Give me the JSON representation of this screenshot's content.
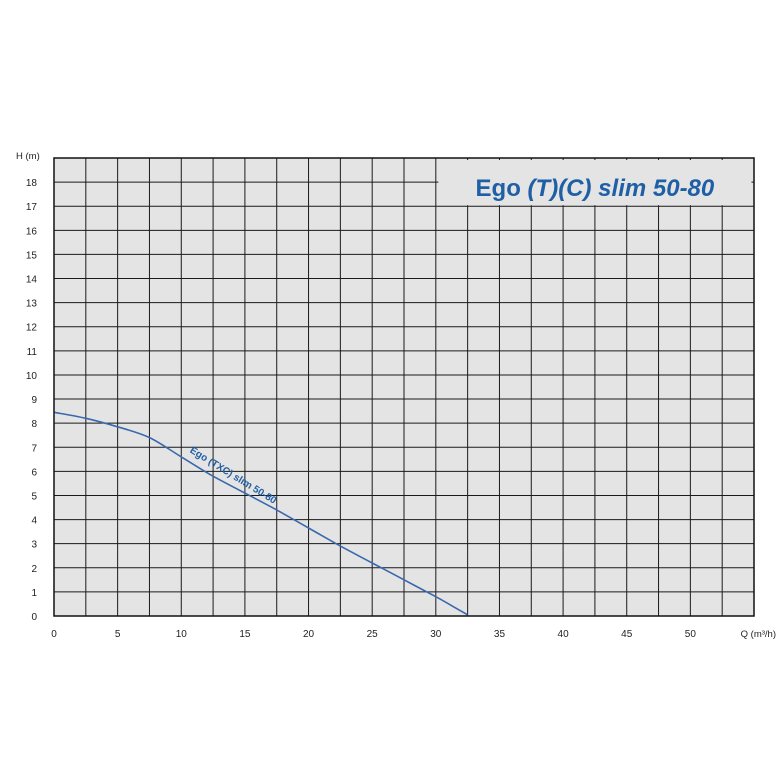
{
  "chart_data": {
    "type": "line",
    "title_main": "Ego ",
    "title_italic": "(T)(C) slim 50-80",
    "xlabel": "Q (m³/h)",
    "ylabel": "H (m)",
    "xlim": [
      0,
      55
    ],
    "ylim": [
      0,
      19
    ],
    "x_ticks": [
      "0",
      "5",
      "10",
      "15",
      "20",
      "25",
      "30",
      "35",
      "40",
      "45",
      "50"
    ],
    "y_ticks": [
      "0",
      "1",
      "2",
      "3",
      "4",
      "5",
      "6",
      "7",
      "8",
      "9",
      "10",
      "11",
      "12",
      "13",
      "14",
      "15",
      "16",
      "17",
      "18"
    ],
    "grid": true,
    "series": [
      {
        "name": "Ego (TXC) slim 50-80",
        "color": "#3a68ad",
        "x": [
          0,
          2.5,
          5,
          7.5,
          10,
          12.5,
          15,
          17.5,
          20,
          22.5,
          25,
          27.5,
          30,
          31.5,
          32.5
        ],
        "y": [
          8.45,
          8.2,
          7.85,
          7.4,
          6.6,
          5.8,
          5.1,
          4.4,
          3.65,
          2.9,
          2.2,
          1.5,
          0.8,
          0.35,
          0.05
        ]
      }
    ]
  }
}
